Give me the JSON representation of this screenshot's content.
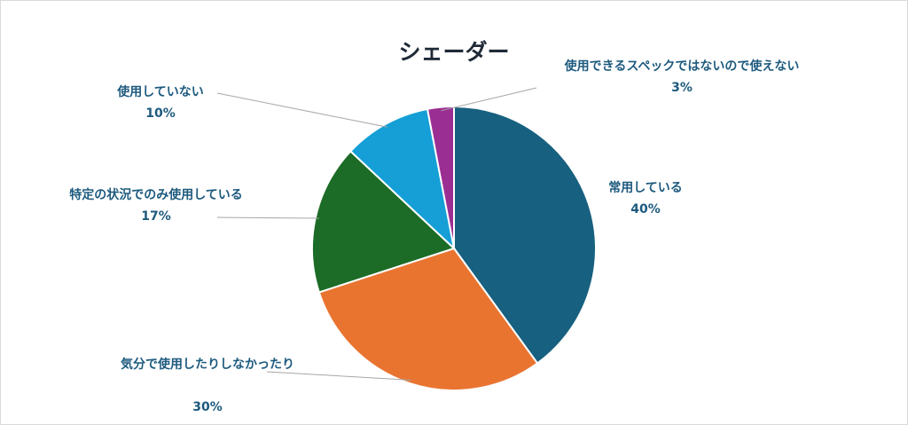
{
  "chart_data": {
    "type": "pie",
    "title": "シェーダー",
    "start_angle_deg": 0,
    "direction": "clockwise",
    "slices": [
      {
        "label": "常用している",
        "percent_label": "40%",
        "value": 40,
        "color": "#17607f"
      },
      {
        "label": "気分で使用したりしなかったり",
        "percent_label": "30%",
        "value": 30,
        "color": "#e97430"
      },
      {
        "label": "特定の状況でのみ使用している",
        "percent_label": "17%",
        "value": 17,
        "color": "#1c6b26"
      },
      {
        "label": "使用していない",
        "percent_label": "10%",
        "value": 10,
        "color": "#159fd6"
      },
      {
        "label": "使用できるスペックではないので使えない",
        "percent_label": "3%",
        "value": 3,
        "color": "#9b2e93"
      }
    ]
  }
}
